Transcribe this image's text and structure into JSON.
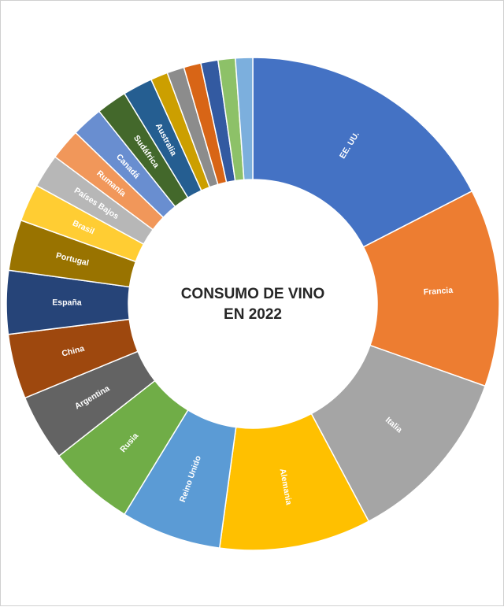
{
  "chart_data": {
    "type": "pie",
    "variant": "doughnut",
    "title_lines": [
      "CONSUMO DE VINO",
      "EN 2022"
    ],
    "legend": "none",
    "start_angle_deg": 0,
    "direction": "clockwise",
    "slices": [
      {
        "label": "EE. UU.",
        "value": 34.0,
        "color": "#4472C4"
      },
      {
        "label": "Francia",
        "value": 25.3,
        "color": "#ED7D31"
      },
      {
        "label": "Italia",
        "value": 23.0,
        "color": "#A5A5A5"
      },
      {
        "label": "Alemania",
        "value": 19.4,
        "color": "#FFC000"
      },
      {
        "label": "Reino Unido",
        "value": 12.8,
        "color": "#5B9BD5"
      },
      {
        "label": "Rusia",
        "value": 11.1,
        "color": "#70AD47"
      },
      {
        "label": "Argentina",
        "value": 8.5,
        "color": "#636363"
      },
      {
        "label": "China",
        "value": 8.3,
        "color": "#9E480E"
      },
      {
        "label": "España",
        "value": 8.1,
        "color": "#264478"
      },
      {
        "label": "Portugal",
        "value": 6.5,
        "color": "#997300"
      },
      {
        "label": "Brasil",
        "value": 4.8,
        "color": "#FFCD33"
      },
      {
        "label": "Países Bajos",
        "value": 4.3,
        "color": "#B7B7B7"
      },
      {
        "label": "Rumanía",
        "value": 4.0,
        "color": "#F1975A"
      },
      {
        "label": "Canadá",
        "value": 4.0,
        "color": "#698ED0"
      },
      {
        "label": "Sudáfrica",
        "value": 3.9,
        "color": "#43682B"
      },
      {
        "label": "Australia",
        "value": 3.8,
        "color": "#255E91"
      },
      {
        "label": "",
        "value": 2.2,
        "color": "#CC9F00"
      },
      {
        "label": "",
        "value": 2.2,
        "color": "#8C8C8C"
      },
      {
        "label": "",
        "value": 2.2,
        "color": "#D86516"
      },
      {
        "label": "",
        "value": 2.2,
        "color": "#335AA1"
      },
      {
        "label": "",
        "value": 2.2,
        "color": "#8DC168"
      },
      {
        "label": "",
        "value": 2.2,
        "color": "#7CAFDD"
      }
    ]
  }
}
